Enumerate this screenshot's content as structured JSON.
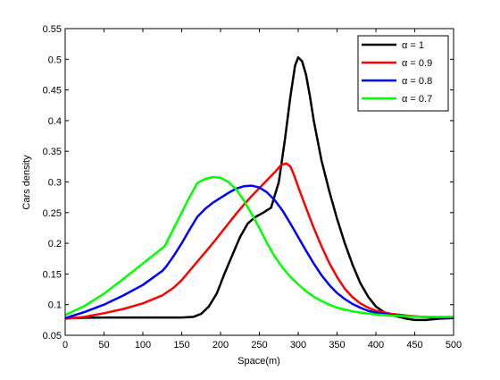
{
  "chart_data": {
    "type": "line",
    "title": "",
    "xlabel": "Space(m)",
    "ylabel": "Cars density",
    "xlim": [
      0,
      500
    ],
    "ylim": [
      0.05,
      0.55
    ],
    "xticks": [
      0,
      50,
      100,
      150,
      200,
      250,
      300,
      350,
      400,
      450,
      500
    ],
    "yticks": [
      0.05,
      0.1,
      0.15,
      0.2,
      0.25,
      0.3,
      0.35,
      0.4,
      0.45,
      0.5,
      0.55
    ],
    "grid": false,
    "legend_position": "top-right",
    "series": [
      {
        "name": "α = 1",
        "color": "#000000",
        "points": [
          [
            0,
            0.078
          ],
          [
            50,
            0.079
          ],
          [
            100,
            0.079
          ],
          [
            150,
            0.079
          ],
          [
            165,
            0.08
          ],
          [
            175,
            0.085
          ],
          [
            185,
            0.097
          ],
          [
            195,
            0.118
          ],
          [
            205,
            0.15
          ],
          [
            215,
            0.18
          ],
          [
            225,
            0.21
          ],
          [
            235,
            0.232
          ],
          [
            245,
            0.243
          ],
          [
            255,
            0.25
          ],
          [
            265,
            0.258
          ],
          [
            275,
            0.3
          ],
          [
            283,
            0.37
          ],
          [
            290,
            0.44
          ],
          [
            296,
            0.49
          ],
          [
            300,
            0.503
          ],
          [
            305,
            0.497
          ],
          [
            310,
            0.475
          ],
          [
            315,
            0.44
          ],
          [
            320,
            0.4
          ],
          [
            330,
            0.335
          ],
          [
            340,
            0.285
          ],
          [
            350,
            0.24
          ],
          [
            360,
            0.2
          ],
          [
            370,
            0.165
          ],
          [
            380,
            0.135
          ],
          [
            390,
            0.113
          ],
          [
            400,
            0.097
          ],
          [
            410,
            0.088
          ],
          [
            420,
            0.083
          ],
          [
            430,
            0.08
          ],
          [
            440,
            0.077
          ],
          [
            450,
            0.075
          ],
          [
            465,
            0.075
          ],
          [
            480,
            0.077
          ],
          [
            500,
            0.078
          ]
        ]
      },
      {
        "name": "α = 0.9",
        "color": "#ff0000",
        "points": [
          [
            0,
            0.077
          ],
          [
            25,
            0.08
          ],
          [
            50,
            0.086
          ],
          [
            75,
            0.093
          ],
          [
            100,
            0.102
          ],
          [
            125,
            0.115
          ],
          [
            140,
            0.128
          ],
          [
            150,
            0.14
          ],
          [
            160,
            0.155
          ],
          [
            170,
            0.17
          ],
          [
            180,
            0.185
          ],
          [
            190,
            0.2
          ],
          [
            200,
            0.216
          ],
          [
            210,
            0.232
          ],
          [
            220,
            0.248
          ],
          [
            230,
            0.263
          ],
          [
            240,
            0.277
          ],
          [
            250,
            0.29
          ],
          [
            260,
            0.303
          ],
          [
            270,
            0.316
          ],
          [
            278,
            0.328
          ],
          [
            285,
            0.33
          ],
          [
            290,
            0.325
          ],
          [
            295,
            0.31
          ],
          [
            300,
            0.292
          ],
          [
            310,
            0.258
          ],
          [
            320,
            0.225
          ],
          [
            330,
            0.195
          ],
          [
            340,
            0.168
          ],
          [
            350,
            0.145
          ],
          [
            360,
            0.126
          ],
          [
            370,
            0.112
          ],
          [
            380,
            0.102
          ],
          [
            390,
            0.095
          ],
          [
            400,
            0.09
          ],
          [
            420,
            0.085
          ],
          [
            440,
            0.082
          ],
          [
            460,
            0.08
          ],
          [
            480,
            0.079
          ],
          [
            500,
            0.079
          ]
        ]
      },
      {
        "name": "α = 0.8",
        "color": "#0000ff",
        "points": [
          [
            0,
            0.078
          ],
          [
            25,
            0.088
          ],
          [
            50,
            0.1
          ],
          [
            75,
            0.115
          ],
          [
            100,
            0.132
          ],
          [
            125,
            0.155
          ],
          [
            130,
            0.162
          ],
          [
            140,
            0.18
          ],
          [
            150,
            0.2
          ],
          [
            160,
            0.222
          ],
          [
            170,
            0.243
          ],
          [
            180,
            0.256
          ],
          [
            190,
            0.266
          ],
          [
            200,
            0.274
          ],
          [
            210,
            0.282
          ],
          [
            220,
            0.289
          ],
          [
            230,
            0.293
          ],
          [
            240,
            0.294
          ],
          [
            250,
            0.291
          ],
          [
            260,
            0.283
          ],
          [
            270,
            0.27
          ],
          [
            280,
            0.253
          ],
          [
            290,
            0.232
          ],
          [
            300,
            0.21
          ],
          [
            310,
            0.188
          ],
          [
            320,
            0.167
          ],
          [
            330,
            0.148
          ],
          [
            340,
            0.132
          ],
          [
            350,
            0.119
          ],
          [
            360,
            0.109
          ],
          [
            370,
            0.101
          ],
          [
            380,
            0.095
          ],
          [
            390,
            0.09
          ],
          [
            400,
            0.087
          ],
          [
            420,
            0.083
          ],
          [
            440,
            0.081
          ],
          [
            460,
            0.08
          ],
          [
            480,
            0.079
          ],
          [
            500,
            0.079
          ]
        ]
      },
      {
        "name": "α = 0.7",
        "color": "#00ff00",
        "points": [
          [
            0,
            0.083
          ],
          [
            25,
            0.098
          ],
          [
            50,
            0.118
          ],
          [
            75,
            0.142
          ],
          [
            100,
            0.167
          ],
          [
            115,
            0.182
          ],
          [
            128,
            0.195
          ],
          [
            140,
            0.225
          ],
          [
            150,
            0.25
          ],
          [
            160,
            0.275
          ],
          [
            170,
            0.298
          ],
          [
            180,
            0.305
          ],
          [
            190,
            0.308
          ],
          [
            200,
            0.307
          ],
          [
            210,
            0.3
          ],
          [
            220,
            0.288
          ],
          [
            230,
            0.27
          ],
          [
            240,
            0.248
          ],
          [
            250,
            0.225
          ],
          [
            260,
            0.2
          ],
          [
            270,
            0.178
          ],
          [
            280,
            0.16
          ],
          [
            290,
            0.145
          ],
          [
            300,
            0.133
          ],
          [
            310,
            0.122
          ],
          [
            320,
            0.113
          ],
          [
            330,
            0.106
          ],
          [
            340,
            0.1
          ],
          [
            350,
            0.095
          ],
          [
            360,
            0.092
          ],
          [
            370,
            0.089
          ],
          [
            380,
            0.087
          ],
          [
            400,
            0.084
          ],
          [
            420,
            0.082
          ],
          [
            440,
            0.081
          ],
          [
            460,
            0.08
          ],
          [
            480,
            0.08
          ],
          [
            500,
            0.08
          ]
        ]
      }
    ]
  }
}
